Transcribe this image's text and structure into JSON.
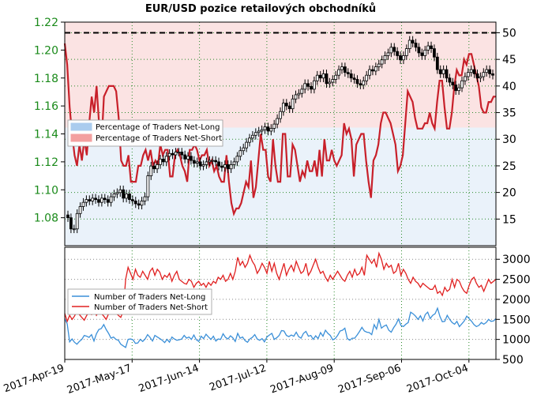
{
  "chart_data": [
    {
      "type": "candlestick",
      "title": "EUR/USD pozice retailových obchodníků",
      "left_axis": {
        "ylim": [
          1.06,
          1.22
        ],
        "ticks": [
          "1.08",
          "1.10",
          "1.12",
          "1.14",
          "1.16",
          "1.18",
          "1.20",
          "1.22"
        ],
        "tick_color": "#1a8a1a"
      },
      "right_axis": {
        "ylim": [
          10,
          52
        ],
        "ticks": [
          "15",
          "20",
          "25",
          "30",
          "35",
          "40",
          "45",
          "50"
        ]
      },
      "x_ticks": [
        "2017-Apr-19",
        "2017-May-17",
        "2017-Jun-14",
        "2017-Jul-12",
        "2017-Aug-09",
        "2017-Sep-06",
        "2017-Oct-04"
      ],
      "reference_line": {
        "value": 50,
        "style": "dashed",
        "color": "#000000"
      },
      "legend": {
        "placement": "center-left",
        "entries": [
          {
            "label": "Percentage of Traders Net-Long",
            "color": "#aaccee"
          },
          {
            "label": "Percentage of Traders Net-Short",
            "color": "#f3a0a0"
          }
        ]
      },
      "series": [
        {
          "name": "Percentage of Traders Net-Short",
          "color": "#c8202a",
          "values": [
            48,
            44,
            36,
            31,
            27,
            25,
            29,
            26,
            30,
            27,
            33,
            38,
            35,
            40,
            33,
            29,
            38,
            39,
            40,
            40,
            40,
            39,
            34,
            26,
            25,
            25,
            27,
            22,
            22,
            22,
            25,
            25,
            27,
            28,
            26,
            28,
            25,
            26,
            25,
            29,
            27,
            28,
            28,
            23,
            23,
            27,
            28,
            27,
            25,
            24,
            22,
            28,
            28,
            29,
            28,
            26,
            27,
            27,
            28,
            25,
            26,
            24,
            25,
            23,
            22,
            22,
            27,
            22,
            18,
            16,
            17,
            17,
            18,
            20,
            22,
            21,
            26,
            19,
            21,
            26,
            31,
            28,
            28,
            23,
            22,
            30,
            25,
            22,
            22,
            31,
            31,
            23,
            23,
            29,
            28,
            25,
            22,
            24,
            23,
            26,
            24,
            24,
            26,
            23,
            28,
            23,
            30,
            26,
            26,
            28,
            26,
            25,
            26,
            27,
            33,
            31,
            32,
            30,
            23,
            29,
            30,
            31,
            31,
            26,
            22,
            19,
            26,
            27,
            29,
            33,
            35,
            35,
            34,
            33,
            31,
            29,
            24,
            25,
            27,
            33,
            39,
            38,
            37,
            34,
            32,
            32,
            32,
            33,
            33,
            35,
            33,
            32,
            37,
            41,
            41,
            36,
            32,
            32,
            35,
            40,
            43,
            42,
            42,
            45,
            44,
            46,
            46,
            44,
            42,
            40,
            36,
            35,
            35,
            37,
            37,
            38,
            38
          ]
        }
      ],
      "candles": {
        "color": "#000000",
        "note": "close prices in EUR/USD",
        "close": [
          1.08,
          1.072,
          1.072,
          1.083,
          1.088,
          1.091,
          1.093,
          1.092,
          1.094,
          1.093,
          1.091,
          1.094,
          1.093,
          1.091,
          1.095,
          1.097,
          1.098,
          1.1,
          1.094,
          1.097,
          1.093,
          1.092,
          1.09,
          1.089,
          1.092,
          1.095,
          1.11,
          1.117,
          1.115,
          1.118,
          1.122,
          1.12,
          1.124,
          1.126,
          1.125,
          1.127,
          1.127,
          1.125,
          1.122,
          1.124,
          1.121,
          1.119,
          1.12,
          1.117,
          1.118,
          1.12,
          1.121,
          1.121,
          1.12,
          1.117,
          1.116,
          1.118,
          1.115,
          1.118,
          1.12,
          1.124,
          1.128,
          1.13,
          1.134,
          1.137,
          1.139,
          1.141,
          1.142,
          1.143,
          1.145,
          1.142,
          1.144,
          1.147,
          1.151,
          1.156,
          1.162,
          1.16,
          1.158,
          1.165,
          1.168,
          1.169,
          1.172,
          1.176,
          1.174,
          1.172,
          1.178,
          1.182,
          1.18,
          1.183,
          1.176,
          1.177,
          1.179,
          1.182,
          1.186,
          1.188,
          1.184,
          1.183,
          1.18,
          1.179,
          1.176,
          1.175,
          1.178,
          1.182,
          1.186,
          1.185,
          1.188,
          1.19,
          1.193,
          1.196,
          1.198,
          1.202,
          1.199,
          1.196,
          1.193,
          1.196,
          1.201,
          1.207,
          1.205,
          1.202,
          1.198,
          1.196,
          1.2,
          1.203,
          1.201,
          1.195,
          1.186,
          1.183,
          1.186,
          1.18,
          1.177,
          1.175,
          1.171,
          1.173,
          1.178,
          1.181,
          1.184,
          1.186,
          1.183,
          1.18,
          1.181,
          1.184,
          1.186,
          1.183,
          1.182
        ]
      }
    },
    {
      "type": "line",
      "right_axis": {
        "ylim": [
          500,
          3300
        ],
        "ticks": [
          "500",
          "1000",
          "1500",
          "2000",
          "2500",
          "3000"
        ]
      },
      "legend": {
        "placement": "center-left",
        "entries": [
          {
            "label": "Number of Traders Net-Long",
            "color": "#3a8fd8"
          },
          {
            "label": "Number of Traders Net-Short",
            "color": "#e02020"
          }
        ]
      },
      "series": [
        {
          "name": "Number of Traders Net-Long",
          "color": "#3a8fd8",
          "values": [
            1520,
            1390,
            940,
            1010,
            930,
            880,
            950,
            1000,
            1100,
            1080,
            1050,
            1120,
            960,
            1140,
            1250,
            1270,
            1370,
            1250,
            1150,
            1030,
            1060,
            1000,
            980,
            880,
            840,
            800,
            1000,
            1010,
            990,
            900,
            910,
            1000,
            950,
            1010,
            1120,
            1050,
            960,
            1100,
            1060,
            1020,
            980,
            920,
            1000,
            930,
            1060,
            1010,
            980,
            990,
            1010,
            1100,
            1030,
            1060,
            1000,
            1110,
            990,
            950,
            1080,
            1020,
            1130,
            1060,
            1000,
            1080,
            960,
            1010,
            1000,
            1140,
            1050,
            1010,
            1090,
            1040,
            950,
            1150,
            1030,
            1060,
            970,
            930,
            1010,
            1050,
            1120,
            1010,
            980,
            1020,
            940,
            1060,
            1110,
            1150,
            1000,
            1040,
            1100,
            1220,
            1210,
            1100,
            1070,
            1110,
            1080,
            1180,
            1070,
            1030,
            1150,
            1200,
            1080,
            1100,
            1000,
            1090,
            1020,
            1170,
            1080,
            1230,
            1150,
            1100,
            990,
            1020,
            1100,
            1210,
            1230,
            1280,
            1020,
            980,
            1030,
            1030,
            1110,
            1200,
            1300,
            1210,
            1180,
            1170,
            1120,
            1370,
            1260,
            1500,
            1280,
            1330,
            1360,
            1230,
            1180,
            1290,
            1380,
            1510,
            1350,
            1320,
            1380,
            1420,
            1680,
            1640,
            1580,
            1500,
            1590,
            1460,
            1620,
            1680,
            1520,
            1600,
            1640,
            1780,
            1570,
            1440,
            1450,
            1600,
            1500,
            1420,
            1380,
            1450,
            1320,
            1390,
            1460,
            1580,
            1520,
            1450,
            1370,
            1320,
            1350,
            1420,
            1380,
            1420,
            1500,
            1450,
            1460,
            1520
          ]
        },
        {
          "name": "Number of Traders Net-Short",
          "color": "#e02020",
          "values": [
            1650,
            1450,
            1600,
            1500,
            1580,
            1700,
            1620,
            1550,
            1480,
            1600,
            1680,
            1620,
            1750,
            1600,
            1700,
            1650,
            1580,
            1500,
            1640,
            1680,
            1720,
            1660,
            1600,
            1550,
            1700,
            2500,
            2800,
            2650,
            2500,
            2750,
            2600,
            2550,
            2700,
            2600,
            2500,
            2700,
            2780,
            2600,
            2750,
            2680,
            2500,
            2600,
            2550,
            2650,
            2450,
            2600,
            2700,
            2500,
            2450,
            2400,
            2380,
            2500,
            2450,
            2300,
            2400,
            2450,
            2350,
            2400,
            2300,
            2420,
            2350,
            2450,
            2400,
            2550,
            2500,
            2600,
            2450,
            2500,
            2650,
            2500,
            2700,
            3050,
            2850,
            2950,
            2800,
            2900,
            3100,
            2950,
            2850,
            2650,
            2750,
            2900,
            2800,
            2650,
            2950,
            2700,
            2900,
            2650,
            2500,
            2700,
            2900,
            2600,
            2750,
            2850,
            2700,
            2950,
            2800,
            2650,
            2700,
            2900,
            2600,
            2700,
            2850,
            3000,
            2800,
            2650,
            2700,
            2550,
            2450,
            2600,
            2500,
            2600,
            2700,
            2600,
            2500,
            2450,
            2600,
            2700,
            2550,
            2750,
            2600,
            2650,
            2800,
            2600,
            3100,
            3000,
            2900,
            3000,
            2800,
            3150,
            3000,
            2750,
            2900,
            2800,
            2850,
            2650,
            2700,
            2900,
            2600,
            2750,
            2650,
            2500,
            2400,
            2550,
            2450,
            2400,
            2300,
            2400,
            2350,
            2300,
            2250,
            2250,
            2350,
            2150,
            2200,
            2100,
            2300,
            2200,
            2250,
            2500,
            2300,
            2500,
            2450,
            2300,
            2200,
            2150,
            2350,
            2500,
            2550,
            2400,
            2300,
            2350,
            2200,
            2350,
            2500,
            2400,
            2450,
            2500
          ]
        }
      ]
    }
  ]
}
